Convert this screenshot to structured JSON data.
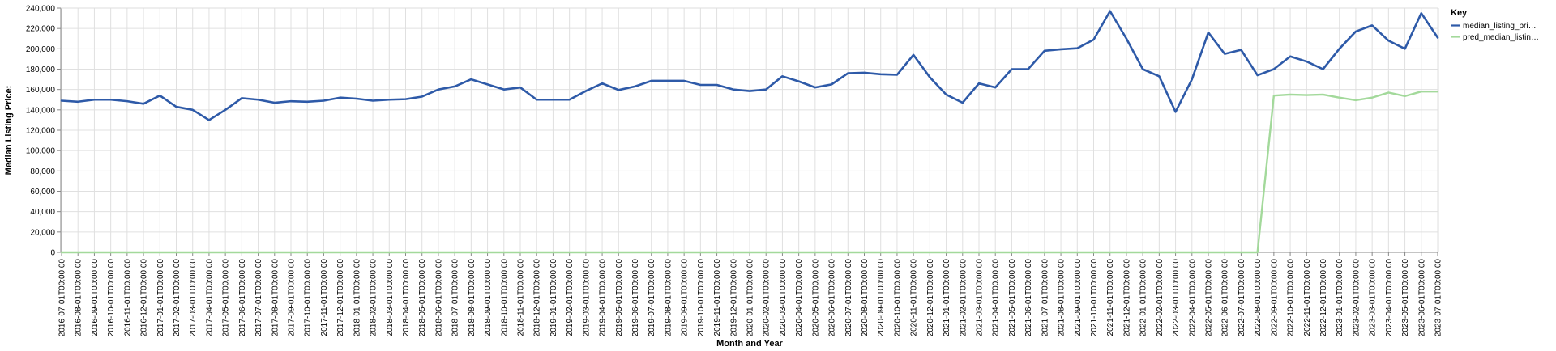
{
  "chart_data": {
    "type": "line",
    "xlabel": "Month and Year",
    "ylabel": "Median Listing Price:",
    "ylim": [
      0,
      240000
    ],
    "y_ticks": [
      "0",
      "20,000",
      "40,000",
      "60,000",
      "80,000",
      "100,000",
      "120,000",
      "140,000",
      "160,000",
      "180,000",
      "200,000",
      "220,000",
      "240,000"
    ],
    "grid": true,
    "legend": {
      "title": "Key",
      "position": "right"
    },
    "x": [
      "2016-07-01T00:00:00",
      "2016-08-01T00:00:00",
      "2016-09-01T00:00:00",
      "2016-10-01T00:00:00",
      "2016-11-01T00:00:00",
      "2016-12-01T00:00:00",
      "2017-01-01T00:00:00",
      "2017-02-01T00:00:00",
      "2017-03-01T00:00:00",
      "2017-04-01T00:00:00",
      "2017-05-01T00:00:00",
      "2017-06-01T00:00:00",
      "2017-07-01T00:00:00",
      "2017-08-01T00:00:00",
      "2017-09-01T00:00:00",
      "2017-10-01T00:00:00",
      "2017-11-01T00:00:00",
      "2017-12-01T00:00:00",
      "2018-01-01T00:00:00",
      "2018-02-01T00:00:00",
      "2018-03-01T00:00:00",
      "2018-04-01T00:00:00",
      "2018-05-01T00:00:00",
      "2018-06-01T00:00:00",
      "2018-07-01T00:00:00",
      "2018-08-01T00:00:00",
      "2018-09-01T00:00:00",
      "2018-10-01T00:00:00",
      "2018-11-01T00:00:00",
      "2018-12-01T00:00:00",
      "2019-01-01T00:00:00",
      "2019-02-01T00:00:00",
      "2019-03-01T00:00:00",
      "2019-04-01T00:00:00",
      "2019-05-01T00:00:00",
      "2019-06-01T00:00:00",
      "2019-07-01T00:00:00",
      "2019-08-01T00:00:00",
      "2019-09-01T00:00:00",
      "2019-10-01T00:00:00",
      "2019-11-01T00:00:00",
      "2019-12-01T00:00:00",
      "2020-01-01T00:00:00",
      "2020-02-01T00:00:00",
      "2020-03-01T00:00:00",
      "2020-04-01T00:00:00",
      "2020-05-01T00:00:00",
      "2020-06-01T00:00:00",
      "2020-07-01T00:00:00",
      "2020-08-01T00:00:00",
      "2020-09-01T00:00:00",
      "2020-10-01T00:00:00",
      "2020-11-01T00:00:00",
      "2020-12-01T00:00:00",
      "2021-01-01T00:00:00",
      "2021-02-01T00:00:00",
      "2021-03-01T00:00:00",
      "2021-04-01T00:00:00",
      "2021-05-01T00:00:00",
      "2021-06-01T00:00:00",
      "2021-07-01T00:00:00",
      "2021-08-01T00:00:00",
      "2021-09-01T00:00:00",
      "2021-10-01T00:00:00",
      "2021-11-01T00:00:00",
      "2021-12-01T00:00:00",
      "2022-01-01T00:00:00",
      "2022-02-01T00:00:00",
      "2022-03-01T00:00:00",
      "2022-04-01T00:00:00",
      "2022-05-01T00:00:00",
      "2022-06-01T00:00:00",
      "2022-07-01T00:00:00",
      "2022-08-01T00:00:00",
      "2022-09-01T00:00:00",
      "2022-10-01T00:00:00",
      "2022-11-01T00:00:00",
      "2022-12-01T00:00:00",
      "2023-01-01T00:00:00",
      "2023-02-01T00:00:00",
      "2023-03-01T00:00:00",
      "2023-04-01T00:00:00",
      "2023-05-01T00:00:00",
      "2023-06-01T00:00:00",
      "2023-07-01T00:00:00"
    ],
    "series": [
      {
        "name": "median_listing_pri…",
        "color": "#2e5aa8",
        "values": [
          149000,
          148000,
          150000,
          150000,
          148500,
          146000,
          154000,
          143000,
          140000,
          130000,
          140000,
          151500,
          150000,
          147000,
          148500,
          148000,
          149000,
          152000,
          151000,
          149000,
          150000,
          150500,
          153000,
          160000,
          163000,
          170000,
          165000,
          160000,
          162000,
          150000,
          150000,
          150000,
          158500,
          166000,
          159500,
          163000,
          168500,
          168500,
          168500,
          164500,
          164500,
          160000,
          158500,
          160000,
          173000,
          168000,
          162000,
          165000,
          176000,
          176500,
          175000,
          174500,
          194000,
          172000,
          155000,
          147000,
          166000,
          162000,
          180000,
          180000,
          198000,
          199500,
          200500,
          209000,
          237000,
          210000,
          180000,
          173000,
          138000,
          170000,
          216000,
          195000,
          199000,
          174000,
          180000,
          192500,
          187500,
          180000,
          200000,
          217000,
          223000,
          208000,
          200000,
          235000,
          211000
        ]
      },
      {
        "name": "pred_median_listin…",
        "color": "#a3d99b",
        "values": [
          0,
          0,
          0,
          0,
          0,
          0,
          0,
          0,
          0,
          0,
          0,
          0,
          0,
          0,
          0,
          0,
          0,
          0,
          0,
          0,
          0,
          0,
          0,
          0,
          0,
          0,
          0,
          0,
          0,
          0,
          0,
          0,
          0,
          0,
          0,
          0,
          0,
          0,
          0,
          0,
          0,
          0,
          0,
          0,
          0,
          0,
          0,
          0,
          0,
          0,
          0,
          0,
          0,
          0,
          0,
          0,
          0,
          0,
          0,
          0,
          0,
          0,
          0,
          0,
          0,
          0,
          0,
          0,
          0,
          0,
          0,
          0,
          0,
          0,
          154000,
          155000,
          154500,
          155000,
          152000,
          149500,
          152000,
          157000,
          153500,
          158000,
          158000
        ]
      }
    ]
  }
}
